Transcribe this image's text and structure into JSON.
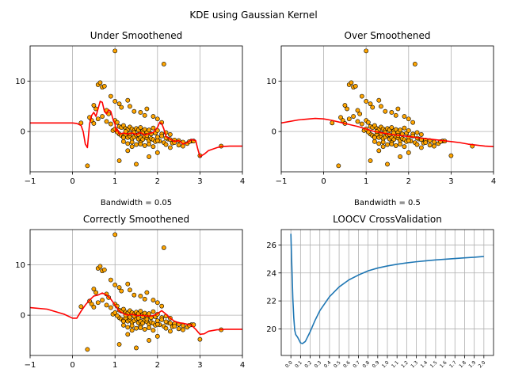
{
  "figure_title": "KDE using Gaussian Kernel",
  "colors": {
    "points_fill": "#FFA500",
    "points_edge": "#000000",
    "kde_line": "#FF0000",
    "cv_line": "#1F77B4",
    "grid": "#B0B0B0"
  },
  "chart_data": [
    {
      "type": "scatter",
      "title": "Under Smoothened",
      "xlabel": "Bandwidth = 0.05",
      "ylabel": "",
      "xlim": [
        -1,
        4
      ],
      "ylim": [
        -8,
        17
      ],
      "xticks": [
        "−1",
        "0",
        "1",
        "2",
        "3",
        "4"
      ],
      "yticks": [
        "0",
        "10"
      ],
      "grid": true,
      "series": [
        {
          "kind": "scatter",
          "x": [
            1.0,
            2.15,
            0.6,
            0.65,
            0.7,
            0.75,
            0.9,
            1.0,
            0.5,
            0.55,
            0.8,
            0.85,
            1.1,
            1.15,
            1.3,
            1.35,
            1.45,
            1.6,
            1.7,
            1.75,
            1.9,
            2.0,
            2.1,
            0.2,
            0.4,
            0.45,
            0.5,
            0.6,
            0.7,
            0.8,
            0.9,
            1.0,
            1.05,
            1.1,
            1.15,
            1.2,
            1.25,
            1.3,
            1.35,
            1.4,
            1.45,
            1.5,
            1.55,
            1.6,
            1.65,
            1.7,
            1.75,
            1.8,
            1.9,
            1.95,
            2.0,
            2.1,
            2.2,
            2.3,
            1.1,
            1.15,
            1.2,
            1.25,
            1.3,
            1.35,
            1.4,
            1.45,
            1.5,
            1.55,
            1.6,
            1.65,
            1.7,
            1.75,
            1.8,
            1.85,
            1.9,
            1.95,
            2.05,
            2.15,
            2.25,
            2.35,
            2.4,
            2.5,
            2.6,
            2.7,
            2.8,
            1.2,
            1.3,
            1.4,
            1.5,
            1.6,
            1.7,
            1.8,
            1.9,
            2.0,
            2.2,
            2.3,
            2.4,
            2.5,
            2.6,
            2.75,
            2.85,
            1.25,
            1.35,
            1.45,
            1.55,
            1.65,
            1.75,
            1.85,
            2.0,
            2.1,
            2.2,
            2.3,
            0.35,
            1.1,
            1.5,
            1.8,
            0.95,
            1.05,
            3.0,
            3.5,
            2.0,
            1.3,
            1.4,
            1.0,
            1.6,
            1.2
          ],
          "y": [
            16,
            13.4,
            9.3,
            9.7,
            8.8,
            9.0,
            7.0,
            6.0,
            5.2,
            4.5,
            4.2,
            3.5,
            5.5,
            4.8,
            6.2,
            5.0,
            4.0,
            3.8,
            3.2,
            4.5,
            3.0,
            2.5,
            1.8,
            1.7,
            2.8,
            2.2,
            1.6,
            2.5,
            3.0,
            2.0,
            1.5,
            2.2,
            1.8,
            1.0,
            0.8,
            1.2,
            0.6,
            0.4,
            0.9,
            0.5,
            0.2,
            0.6,
            0.3,
            0.8,
            0.1,
            0.4,
            -0.2,
            0.3,
            0.7,
            -0.3,
            0.2,
            -0.5,
            -0.2,
            -0.6,
            -0.5,
            -0.8,
            -1.0,
            -0.6,
            -1.2,
            -0.9,
            -1.4,
            -1.1,
            -0.7,
            -1.5,
            -1.2,
            -1.6,
            -1.0,
            -1.3,
            -1.8,
            -1.4,
            -1.6,
            -2.0,
            -1.9,
            -2.2,
            -1.5,
            -2.3,
            -1.7,
            -1.8,
            -2.1,
            -2.4,
            -1.9,
            -2.0,
            -2.4,
            -2.1,
            -2.6,
            -2.2,
            -2.8,
            -2.5,
            -3.0,
            -1.8,
            -2.6,
            -3.2,
            -2.2,
            -2.7,
            -2.9,
            -2.0,
            -1.9,
            0.0,
            -0.4,
            -0.2,
            -0.6,
            -0.3,
            -0.8,
            -0.5,
            -1.1,
            -0.9,
            -1.3,
            -1.6,
            -6.8,
            -5.8,
            -6.5,
            -5.0,
            0.2,
            -0.1,
            -4.8,
            -2.9,
            -4.2,
            -3.8,
            -3.0,
            0.5,
            -2.5,
            -1.2
          ]
        },
        {
          "kind": "line",
          "x": [
            -1.0,
            -0.5,
            0.0,
            0.1,
            0.2,
            0.25,
            0.3,
            0.35,
            0.4,
            0.45,
            0.5,
            0.55,
            0.6,
            0.65,
            0.7,
            0.75,
            0.8,
            0.85,
            0.9,
            0.95,
            1.0,
            1.02,
            1.05,
            1.1,
            1.2,
            1.3,
            1.4,
            1.5,
            1.6,
            1.7,
            1.8,
            1.9,
            2.0,
            2.05,
            2.1,
            2.15,
            2.2,
            2.3,
            2.4,
            2.5,
            2.6,
            2.7,
            2.8,
            2.9,
            2.95,
            3.0,
            3.1,
            3.2,
            3.3,
            3.4,
            3.5,
            3.7,
            4.0
          ],
          "y": [
            1.7,
            1.7,
            1.7,
            1.6,
            1.2,
            0.0,
            -2.5,
            -3.2,
            1.5,
            3.2,
            3.8,
            3.0,
            4.5,
            6.0,
            5.8,
            4.0,
            3.5,
            4.3,
            4.0,
            2.5,
            1.5,
            0.0,
            0.5,
            -0.5,
            -0.3,
            -0.5,
            -0.3,
            -0.6,
            -0.2,
            -0.7,
            -0.4,
            -0.2,
            0.8,
            1.8,
            1.6,
            0.5,
            -1.0,
            -1.5,
            -2.0,
            -1.8,
            -2.5,
            -2.2,
            -1.6,
            -1.8,
            -3.5,
            -5.0,
            -4.5,
            -3.8,
            -3.5,
            -3.2,
            -3.0,
            -2.9,
            -2.9
          ]
        }
      ]
    },
    {
      "type": "scatter",
      "title": "Over Smoothened",
      "xlabel": "Bandwidth = 0.5",
      "ylabel": "",
      "xlim": [
        -1,
        4
      ],
      "ylim": [
        -8,
        17
      ],
      "xticks": [
        "−1",
        "0",
        "1",
        "2",
        "3",
        "4"
      ],
      "yticks": [
        "0",
        "10"
      ],
      "grid": true,
      "series": [
        {
          "kind": "line",
          "x": [
            -1.0,
            -0.6,
            -0.2,
            0.0,
            0.2,
            0.4,
            0.6,
            0.8,
            1.0,
            1.2,
            1.4,
            1.6,
            1.8,
            2.0,
            2.2,
            2.4,
            2.6,
            2.8,
            3.0,
            3.2,
            3.4,
            3.6,
            3.8,
            4.0
          ],
          "y": [
            1.7,
            2.3,
            2.6,
            2.5,
            2.2,
            1.8,
            1.4,
            1.0,
            0.5,
            0.0,
            -0.3,
            -0.6,
            -0.8,
            -1.0,
            -1.2,
            -1.4,
            -1.6,
            -1.8,
            -2.0,
            -2.2,
            -2.5,
            -2.7,
            -2.9,
            -3.0
          ]
        }
      ]
    },
    {
      "type": "scatter",
      "title": "Correctly Smoothened",
      "xlabel": "",
      "ylabel": "",
      "xlim": [
        -1,
        4
      ],
      "ylim": [
        -8,
        17
      ],
      "xticks": [
        "−1",
        "0",
        "1",
        "2",
        "3",
        "4"
      ],
      "yticks": [
        "0",
        "10"
      ],
      "grid": true,
      "series": [
        {
          "kind": "line",
          "x": [
            -1.0,
            -0.6,
            -0.2,
            0.0,
            0.1,
            0.2,
            0.3,
            0.4,
            0.5,
            0.6,
            0.7,
            0.8,
            0.9,
            1.0,
            1.1,
            1.2,
            1.3,
            1.4,
            1.5,
            1.6,
            1.7,
            1.8,
            1.9,
            2.0,
            2.1,
            2.2,
            2.3,
            2.4,
            2.5,
            2.6,
            2.7,
            2.8,
            2.9,
            3.0,
            3.1,
            3.2,
            3.4,
            3.6,
            4.0
          ],
          "y": [
            1.5,
            1.2,
            0.2,
            -0.6,
            -0.6,
            0.8,
            2.0,
            3.0,
            3.8,
            4.0,
            4.4,
            4.0,
            3.2,
            2.0,
            0.8,
            0.3,
            0.0,
            0.2,
            -0.1,
            0.0,
            -0.1,
            -0.2,
            -0.1,
            0.3,
            0.9,
            0.2,
            -0.6,
            -1.2,
            -1.5,
            -1.6,
            -1.8,
            -2.0,
            -2.8,
            -3.8,
            -3.7,
            -3.2,
            -2.9,
            -2.8,
            -2.8
          ]
        }
      ]
    },
    {
      "type": "line",
      "title": "LOOCV CrossValidation",
      "xlabel": "",
      "ylabel": "",
      "xlim": [
        -0.1,
        2.1
      ],
      "ylim": [
        18.1,
        27.1
      ],
      "xticks": [
        "0.0",
        "0.1",
        "0.2",
        "0.3",
        "0.4",
        "0.5",
        "0.6",
        "0.7",
        "0.8",
        "0.9",
        "1.0",
        "1.1",
        "1.2",
        "1.3",
        "1.4",
        "1.5",
        "1.6",
        "1.7",
        "1.8",
        "1.9",
        "2.0"
      ],
      "yticks": [
        "20",
        "22",
        "24",
        "26"
      ],
      "grid": true,
      "series": [
        {
          "kind": "line",
          "x": [
            0.0,
            0.01,
            0.02,
            0.03,
            0.04,
            0.05,
            0.07,
            0.1,
            0.12,
            0.15,
            0.2,
            0.25,
            0.3,
            0.4,
            0.5,
            0.6,
            0.7,
            0.8,
            0.9,
            1.0,
            1.1,
            1.2,
            1.3,
            1.4,
            1.5,
            1.6,
            1.7,
            1.8,
            1.9,
            2.0
          ],
          "y": [
            26.8,
            24.5,
            22.2,
            20.8,
            19.9,
            19.6,
            19.4,
            19.0,
            18.95,
            19.1,
            19.8,
            20.6,
            21.3,
            22.3,
            23.0,
            23.5,
            23.85,
            24.15,
            24.35,
            24.5,
            24.62,
            24.72,
            24.8,
            24.87,
            24.93,
            24.98,
            25.03,
            25.08,
            25.12,
            25.18
          ]
        }
      ]
    }
  ]
}
